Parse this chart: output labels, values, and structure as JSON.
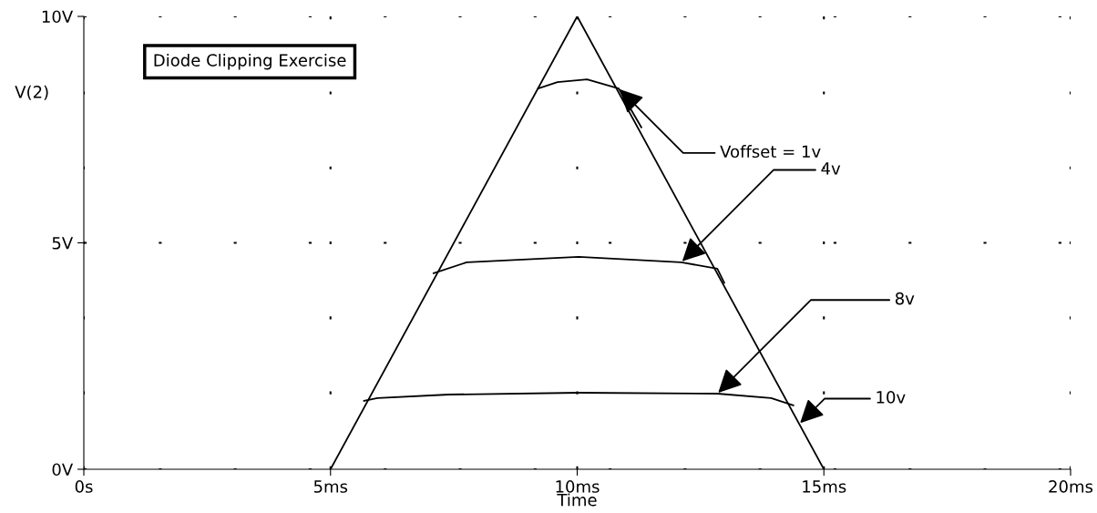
{
  "chart_data": {
    "type": "line",
    "title": "Diode Clipping Exercise",
    "xlabel": "Time",
    "ylabel": "V(2)",
    "xlim": [
      0,
      20
    ],
    "xticks": [
      {
        "value": 0,
        "label": "0s"
      },
      {
        "value": 5,
        "label": "5ms"
      },
      {
        "value": 10,
        "label": "10ms"
      },
      {
        "value": 15,
        "label": "15ms"
      },
      {
        "value": 20,
        "label": "20ms"
      }
    ],
    "ylim": [
      0,
      10
    ],
    "yticks": [
      {
        "value": 0,
        "label": "0V"
      },
      {
        "value": 5,
        "label": "5V"
      },
      {
        "value": 10,
        "label": "10V"
      }
    ],
    "grid": true,
    "line_style": "solid",
    "marker": "none",
    "series": [
      {
        "color": "#000000",
        "x": [
          5,
          10,
          15
        ],
        "values": [
          0,
          10,
          0
        ]
      },
      {
        "color": "#000000",
        "x": [
          9.21,
          9.6,
          10.2,
          10.84,
          11.3
        ],
        "values": [
          8.41,
          8.55,
          8.61,
          8.41,
          7.55
        ]
      },
      {
        "color": "#000000",
        "x": [
          7.09,
          7.76,
          10.03,
          12.11,
          12.84,
          12.98
        ],
        "values": [
          4.33,
          4.57,
          4.69,
          4.57,
          4.43,
          4.12
        ]
      },
      {
        "color": "#000000",
        "x": [
          5.68,
          5.95,
          7.4,
          10.03,
          12.84,
          13.93,
          14.38
        ],
        "values": [
          1.51,
          1.57,
          1.65,
          1.69,
          1.67,
          1.57,
          1.41
        ]
      }
    ],
    "annotations": [
      {
        "text": "Voffset = 1v",
        "x": 10.84,
        "y": 8.41
      },
      {
        "text": "4v",
        "x": 12.11,
        "y": 4.57
      },
      {
        "text": "8v",
        "x": 12.84,
        "y": 1.67
      },
      {
        "text": "10v",
        "x": 14.5,
        "y": 1
      }
    ]
  }
}
